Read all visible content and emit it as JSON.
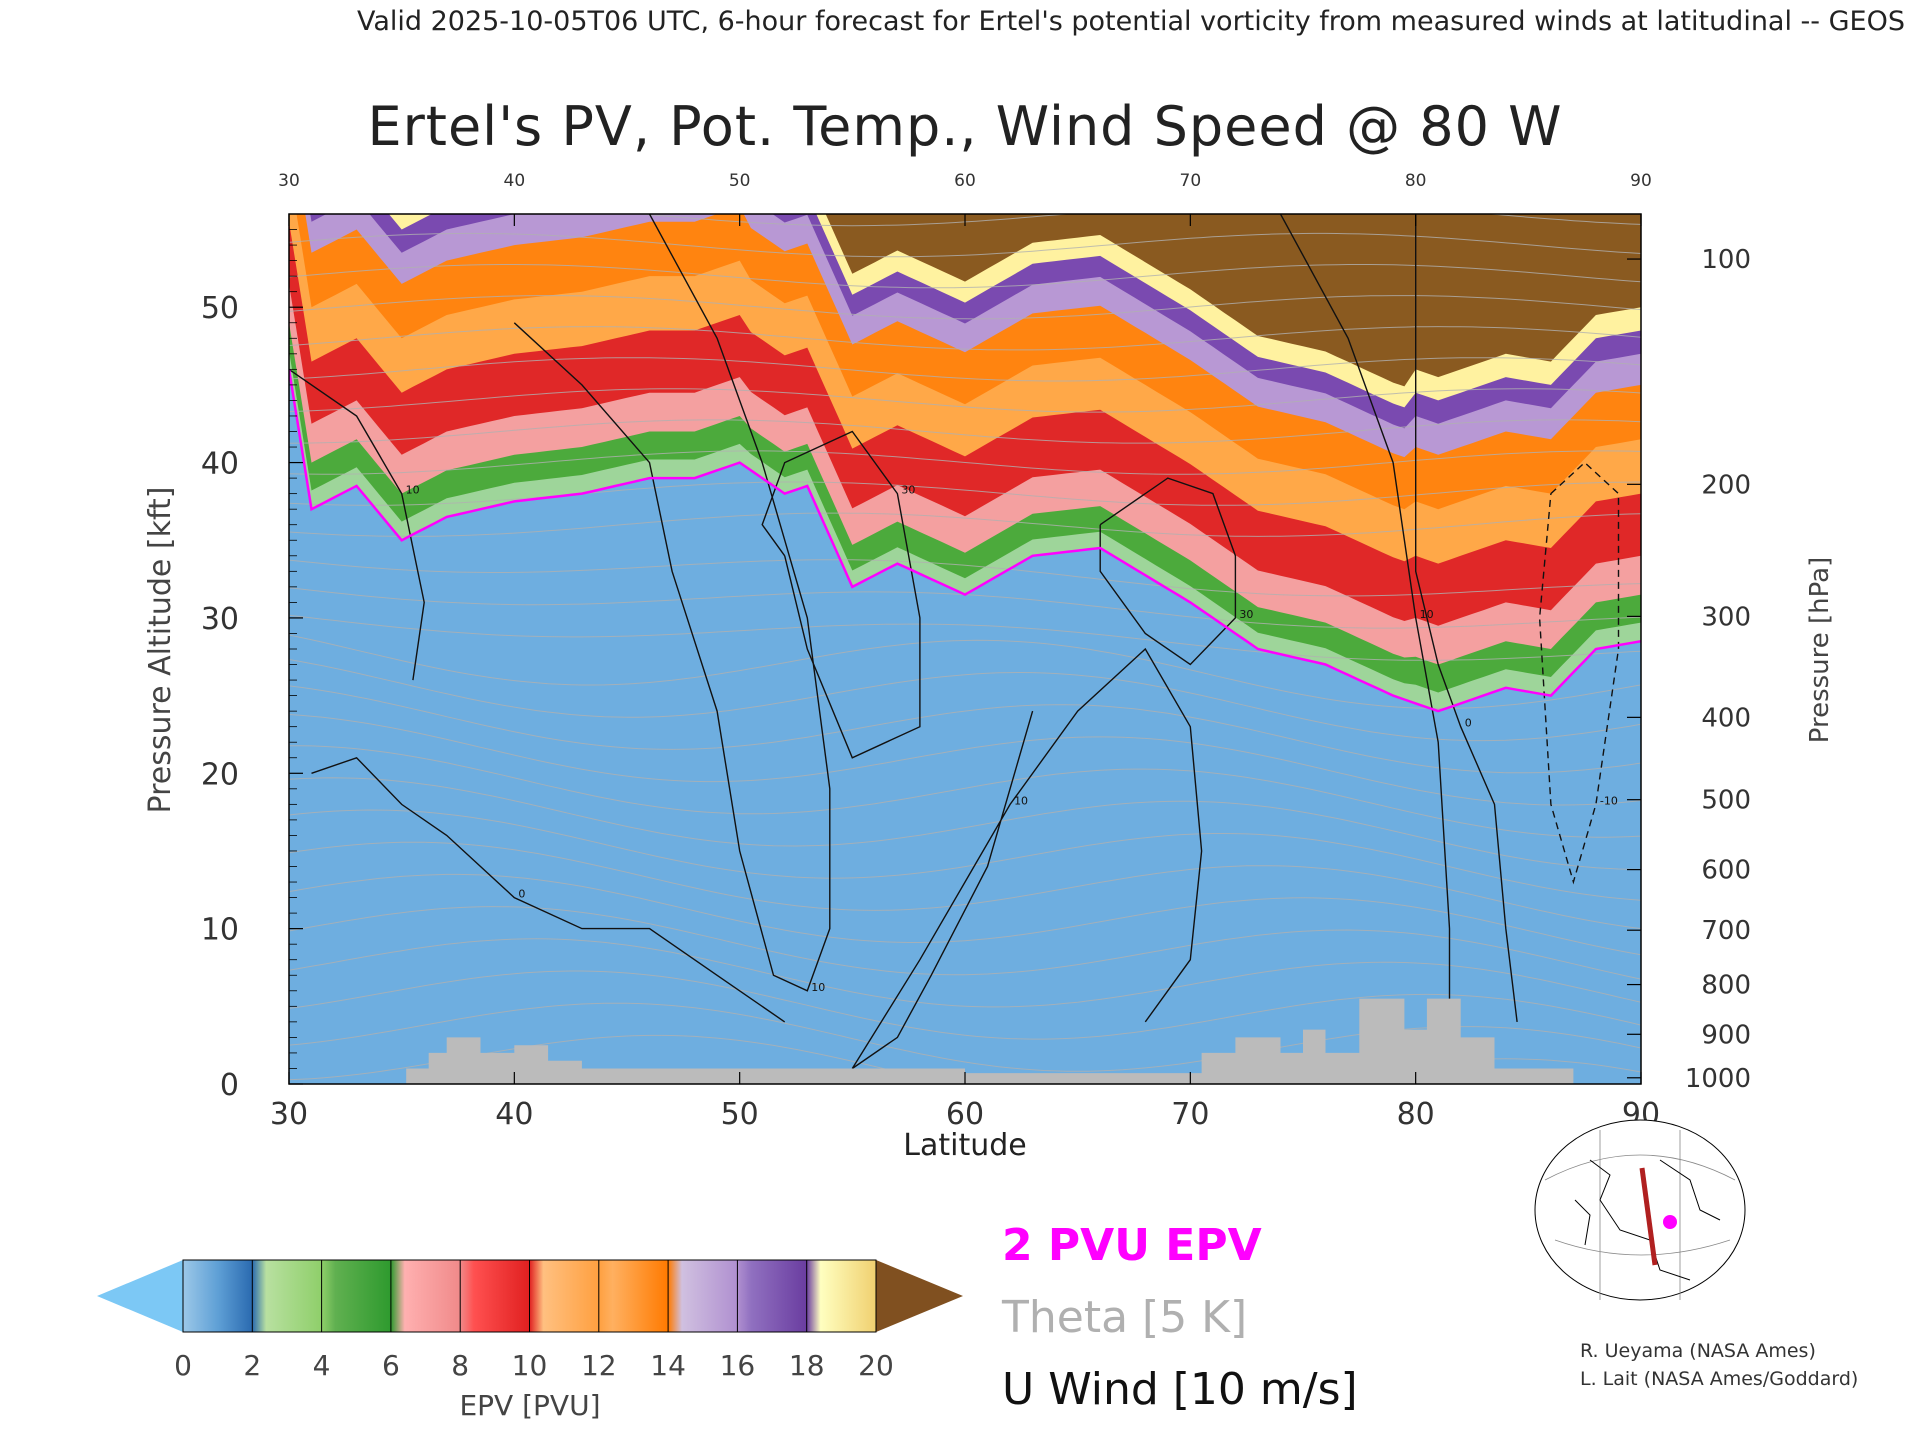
{
  "header": {
    "valid_line": "Valid 2025-10-05T06 UTC, 6-hour forecast for Ertel's potential vorticity from measured winds at latitudinal -- GEOS"
  },
  "chart_data": {
    "type": "heatmap",
    "title": "Ertel's PV, Pot. Temp., Wind Speed @ 80 W",
    "xlabel": "Latitude",
    "ylabel_left": "Pressure Altitude [kft]",
    "ylabel_right": "Pressure [hPa]",
    "xlim": [
      30,
      90
    ],
    "ylim": [
      0,
      56
    ],
    "x_ticks": [
      "30",
      "40",
      "50",
      "60",
      "70",
      "80",
      "90"
    ],
    "x_ticks_top": [
      "30",
      "40",
      "50",
      "60",
      "70",
      "80",
      "90"
    ],
    "y_ticks": [
      "0",
      "10",
      "20",
      "30",
      "40",
      "50"
    ],
    "pressure_ticks": [
      {
        "label": "100",
        "kft": 53.1
      },
      {
        "label": "200",
        "kft": 38.6
      },
      {
        "label": "300",
        "kft": 30.1
      },
      {
        "label": "400",
        "kft": 23.6
      },
      {
        "label": "500",
        "kft": 18.3
      },
      {
        "label": "600",
        "kft": 13.8
      },
      {
        "label": "700",
        "kft": 9.9
      },
      {
        "label": "800",
        "kft": 6.4
      },
      {
        "label": "900",
        "kft": 3.2
      },
      {
        "label": "1000",
        "kft": 0.4
      }
    ],
    "tropopause_2pvu": [
      {
        "lat": 30,
        "kft": 46
      },
      {
        "lat": 31,
        "kft": 37
      },
      {
        "lat": 33,
        "kft": 38.5
      },
      {
        "lat": 35,
        "kft": 35
      },
      {
        "lat": 37,
        "kft": 36.5
      },
      {
        "lat": 40,
        "kft": 37.5
      },
      {
        "lat": 43,
        "kft": 38
      },
      {
        "lat": 46,
        "kft": 39
      },
      {
        "lat": 48,
        "kft": 39
      },
      {
        "lat": 50,
        "kft": 40
      },
      {
        "lat": 52,
        "kft": 38
      },
      {
        "lat": 53,
        "kft": 38.5
      },
      {
        "lat": 55,
        "kft": 32
      },
      {
        "lat": 57,
        "kft": 33.5
      },
      {
        "lat": 60,
        "kft": 31.5
      },
      {
        "lat": 63,
        "kft": 34
      },
      {
        "lat": 66,
        "kft": 34.5
      },
      {
        "lat": 70,
        "kft": 31
      },
      {
        "lat": 73,
        "kft": 28
      },
      {
        "lat": 76,
        "kft": 27
      },
      {
        "lat": 79,
        "kft": 25
      },
      {
        "lat": 81,
        "kft": 24
      },
      {
        "lat": 84,
        "kft": 25.5
      },
      {
        "lat": 86,
        "kft": 25
      },
      {
        "lat": 88,
        "kft": 28
      },
      {
        "lat": 90,
        "kft": 28.5
      }
    ],
    "terrain": [
      {
        "lat": 30,
        "kft": 0
      },
      {
        "lat": 35.2,
        "kft": 0
      },
      {
        "lat": 35.2,
        "kft": 1
      },
      {
        "lat": 36.2,
        "kft": 1
      },
      {
        "lat": 36.2,
        "kft": 2
      },
      {
        "lat": 37,
        "kft": 2
      },
      {
        "lat": 37,
        "kft": 3
      },
      {
        "lat": 38.5,
        "kft": 3
      },
      {
        "lat": 38.5,
        "kft": 2
      },
      {
        "lat": 40,
        "kft": 2
      },
      {
        "lat": 40,
        "kft": 2.5
      },
      {
        "lat": 41.5,
        "kft": 2.5
      },
      {
        "lat": 41.5,
        "kft": 1.5
      },
      {
        "lat": 43,
        "kft": 1.5
      },
      {
        "lat": 43,
        "kft": 1
      },
      {
        "lat": 60,
        "kft": 1
      },
      {
        "lat": 60,
        "kft": 0.7
      },
      {
        "lat": 70.5,
        "kft": 0.7
      },
      {
        "lat": 70.5,
        "kft": 2
      },
      {
        "lat": 72,
        "kft": 2
      },
      {
        "lat": 72,
        "kft": 3
      },
      {
        "lat": 74,
        "kft": 3
      },
      {
        "lat": 74,
        "kft": 2
      },
      {
        "lat": 75,
        "kft": 2
      },
      {
        "lat": 75,
        "kft": 3.5
      },
      {
        "lat": 76,
        "kft": 3.5
      },
      {
        "lat": 76,
        "kft": 2
      },
      {
        "lat": 77.5,
        "kft": 2
      },
      {
        "lat": 77.5,
        "kft": 5.5
      },
      {
        "lat": 79.5,
        "kft": 5.5
      },
      {
        "lat": 79.5,
        "kft": 3.5
      },
      {
        "lat": 80.5,
        "kft": 3.5
      },
      {
        "lat": 80.5,
        "kft": 5.5
      },
      {
        "lat": 82,
        "kft": 5.5
      },
      {
        "lat": 82,
        "kft": 3
      },
      {
        "lat": 83.5,
        "kft": 3
      },
      {
        "lat": 83.5,
        "kft": 1
      },
      {
        "lat": 87,
        "kft": 1
      },
      {
        "lat": 87,
        "kft": 0
      },
      {
        "lat": 90,
        "kft": 0
      }
    ],
    "u_wind_contours": [
      {
        "level": "10",
        "points": [
          [
            30,
            46
          ],
          [
            33,
            43
          ],
          [
            35,
            38
          ],
          [
            36,
            31
          ],
          [
            35.5,
            26
          ]
        ]
      },
      {
        "level": "10",
        "points": [
          [
            40,
            49
          ],
          [
            43,
            45
          ],
          [
            46,
            40
          ],
          [
            47,
            33
          ],
          [
            49,
            24
          ],
          [
            50,
            15
          ],
          [
            51.5,
            7
          ],
          [
            53,
            6
          ],
          [
            54,
            10
          ],
          [
            54,
            19
          ],
          [
            53,
            30
          ],
          [
            51,
            40
          ],
          [
            49,
            48
          ],
          [
            46,
            56
          ]
        ]
      },
      {
        "level": "30",
        "points": [
          [
            52,
            34
          ],
          [
            53,
            28
          ],
          [
            55,
            21
          ],
          [
            58,
            23
          ],
          [
            58,
            30
          ],
          [
            57,
            38
          ],
          [
            55,
            42
          ],
          [
            52,
            40
          ],
          [
            51,
            36
          ],
          [
            52,
            34
          ]
        ]
      },
      {
        "level": "10",
        "points": [
          [
            63,
            24
          ],
          [
            61,
            14
          ],
          [
            58.5,
            7
          ],
          [
            57,
            3
          ],
          [
            55,
            1
          ],
          [
            58,
            8
          ],
          [
            62,
            18
          ],
          [
            65,
            24
          ],
          [
            68,
            28
          ],
          [
            70,
            23
          ],
          [
            70.5,
            15
          ],
          [
            70,
            8
          ],
          [
            68,
            4
          ]
        ]
      },
      {
        "level": "30",
        "points": [
          [
            66,
            36
          ],
          [
            69,
            39
          ],
          [
            71,
            38
          ],
          [
            72,
            34
          ],
          [
            72,
            30
          ],
          [
            70,
            27
          ],
          [
            68,
            29
          ],
          [
            66,
            33
          ],
          [
            66,
            36
          ]
        ]
      },
      {
        "level": "10",
        "points": [
          [
            74,
            56
          ],
          [
            77,
            48
          ],
          [
            79,
            40
          ],
          [
            80,
            30
          ],
          [
            81,
            22
          ],
          [
            81.5,
            10
          ],
          [
            81.5,
            4
          ]
        ]
      },
      {
        "level": "0",
        "points": [
          [
            80,
            56
          ],
          [
            80,
            45
          ],
          [
            80,
            33
          ],
          [
            81,
            27
          ],
          [
            82,
            23
          ],
          [
            83.5,
            18
          ],
          [
            84,
            10
          ],
          [
            84.5,
            4
          ]
        ]
      },
      {
        "level": "0",
        "points": [
          [
            31,
            20
          ],
          [
            33,
            21
          ],
          [
            35,
            18
          ],
          [
            37,
            16
          ],
          [
            40,
            12
          ],
          [
            43,
            10
          ],
          [
            46,
            10
          ],
          [
            49,
            7
          ],
          [
            52,
            4
          ]
        ]
      },
      {
        "level": "-10",
        "points": [
          [
            86,
            38
          ],
          [
            87.5,
            40
          ],
          [
            89,
            38
          ],
          [
            89,
            28
          ],
          [
            88,
            18
          ],
          [
            87,
            13
          ],
          [
            86,
            18
          ],
          [
            85.5,
            30
          ],
          [
            86,
            38
          ]
        ]
      }
    ],
    "colorbar": {
      "label": "EPV [PVU]",
      "ticks": [
        "0",
        "2",
        "4",
        "6",
        "8",
        "10",
        "12",
        "14",
        "16",
        "18",
        "20"
      ],
      "colors": [
        "#2a6ab0",
        "#8fcf6a",
        "#2e9a2e",
        "#f08a8a",
        "#e02020",
        "#ffa040",
        "#ff7a00",
        "#b090d0",
        "#6a3da0",
        "#fff090"
      ],
      "under_color": "#7cc8f5",
      "over_color": "#805020"
    },
    "legend": {
      "epv_line": "2 PVU EPV",
      "theta_line": "Theta [5 K]",
      "wind_line": "U Wind [10 m/s]"
    },
    "credits": [
      "R. Ueyama (NASA Ames)",
      "L. Lait (NASA Ames/Goddard)"
    ]
  },
  "colors": {
    "epv_line": "#ff00ff",
    "theta_line": "#b0b0b0",
    "wind_line": "#111111",
    "terrain": "#bbbbbb",
    "map_track": "#b02020",
    "map_marker": "#ff00ff"
  }
}
